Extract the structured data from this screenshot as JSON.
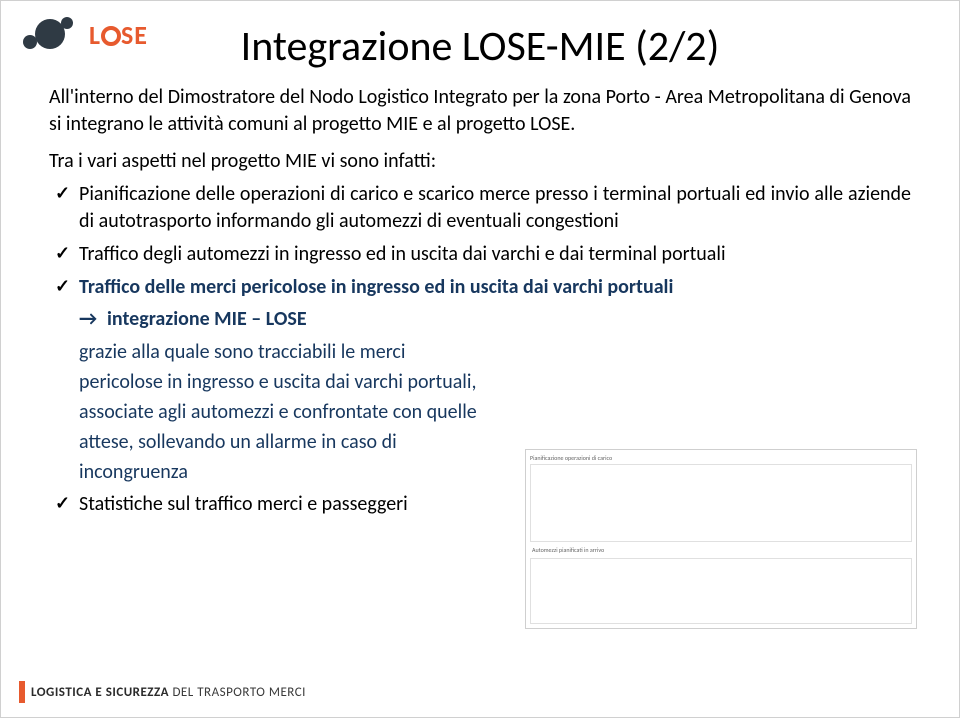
{
  "logo": {
    "text_prefix": "L",
    "text_suffix": "SE"
  },
  "title": "Integrazione LOSE-MIE (2/2)",
  "intro": "All'interno del Dimostratore del Nodo Logistico Integrato  per la zona Porto - Area Metropolitana di Genova si integrano le attività comuni al progetto MIE e al progetto LOSE.",
  "subhead": "Tra i vari aspetti nel progetto MIE vi sono infatti:",
  "bullets": {
    "b1": "Pianificazione delle operazioni di carico e scarico merce presso i terminal portuali ed invio alle aziende di autotrasporto informando gli automezzi di eventuali congestioni",
    "b2": "Traffico degli automezzi in ingresso ed in uscita dai varchi e dai terminal portuali",
    "b3": "Traffico delle merci pericolose in ingresso ed in uscita dai varchi portuali",
    "b4": "Statistiche sul traffico merci e passeggeri"
  },
  "arrow_label": "integrazione MIE – LOSE",
  "detail_text": "grazie alla quale sono tracciabili le merci pericolose in ingresso e uscita dai varchi portuali, associate agli automezzi e confrontate con quelle attese, sollevando un allarme in caso di incongruenza",
  "placeholder": {
    "caption_top": "Pianificazione operazioni di carico",
    "caption_bottom": "Automezzi pianificati in arrivo"
  },
  "footer": {
    "bold": "LOGISTICA E SICUREZZA",
    "rest": " DEL TRASPORTO MERCI"
  },
  "colors": {
    "title": "#000000",
    "blue": "#17375e",
    "accent": "#e75a2e",
    "border": "#d0d0d0",
    "background": "#ffffff"
  }
}
